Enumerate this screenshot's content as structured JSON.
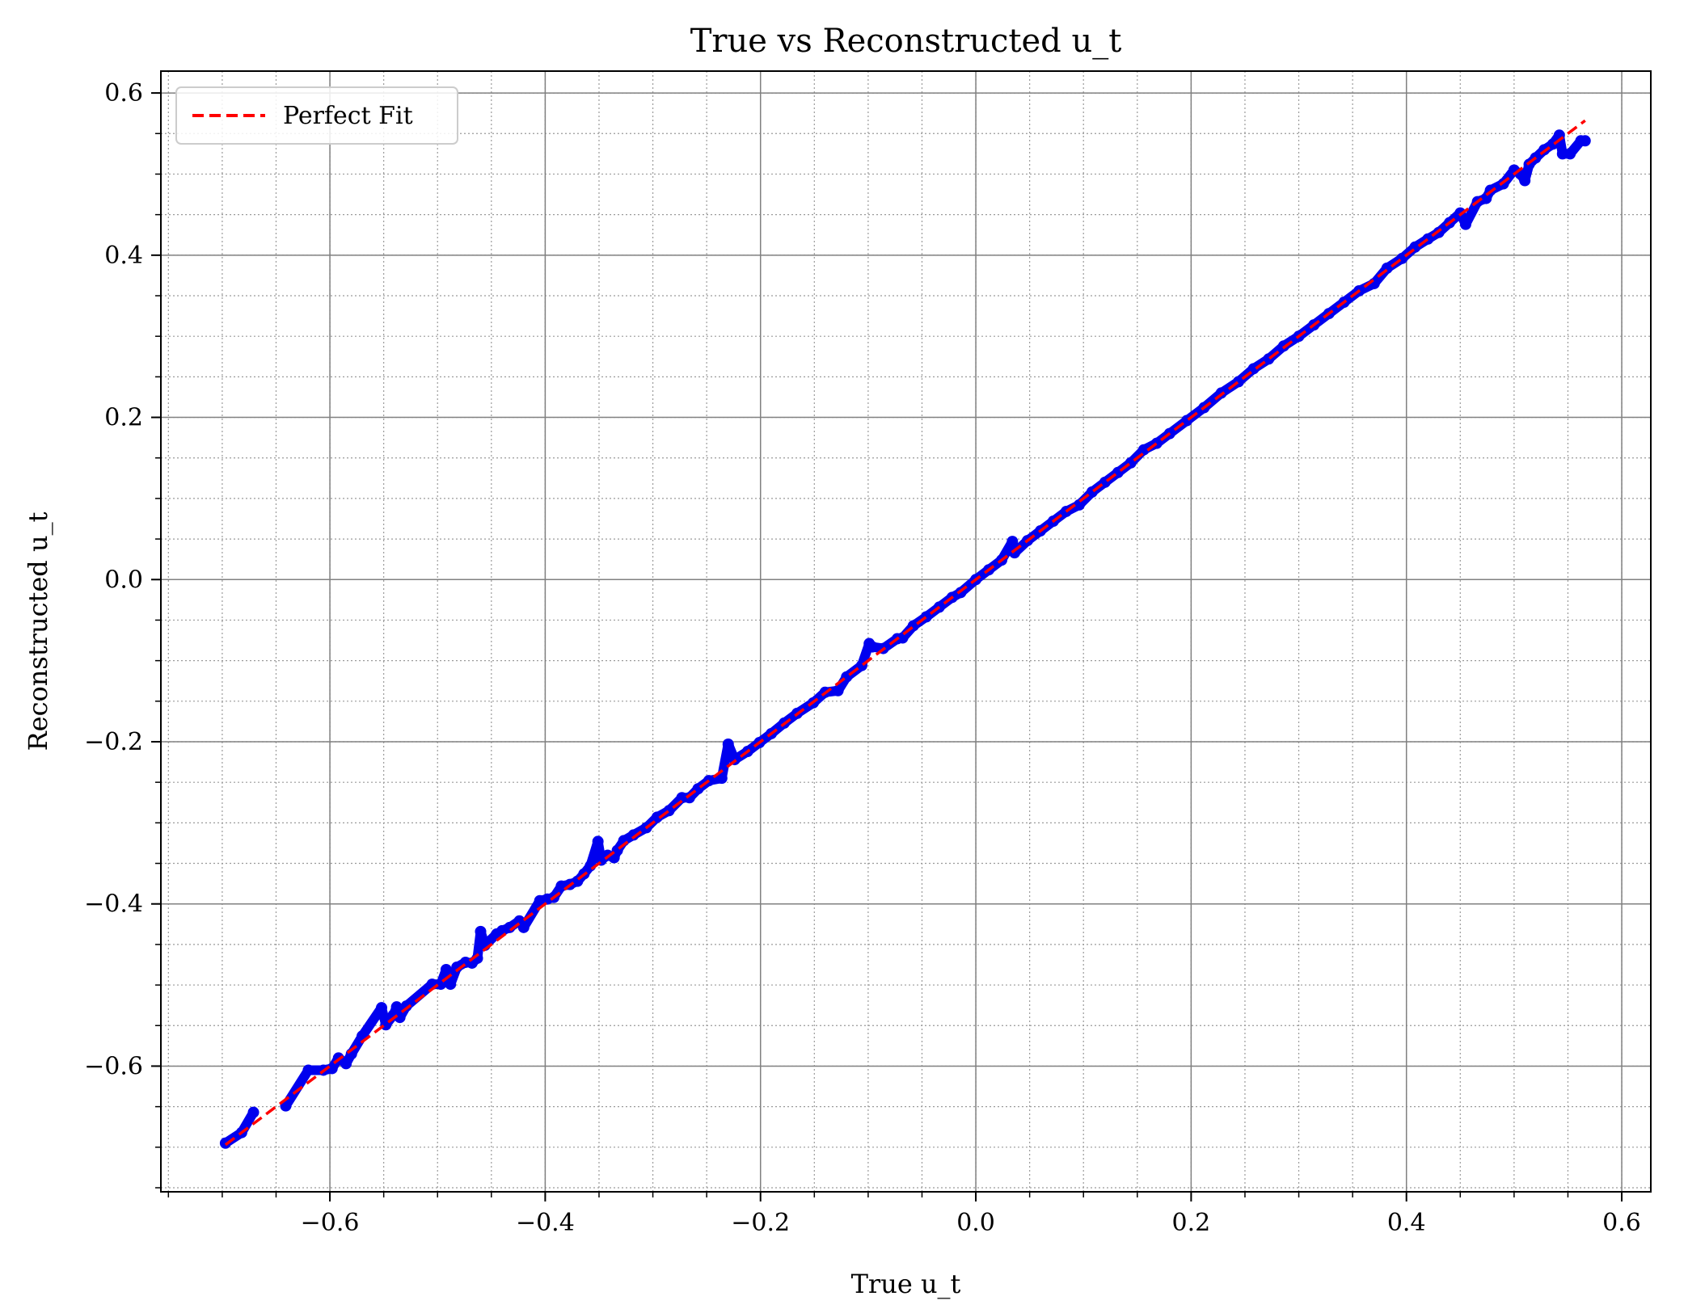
{
  "chart_data": {
    "type": "scatter",
    "title": "True vs Reconstructed u_t",
    "xlabel": "True u_t",
    "ylabel": "Reconstructed u_t",
    "xlim": [
      -0.757,
      0.627
    ],
    "ylim": [
      -0.755,
      0.627
    ],
    "xticks": [
      -0.6,
      -0.4,
      -0.2,
      0.0,
      0.2,
      0.4,
      0.6
    ],
    "xtick_labels": [
      "−0.6",
      "−0.4",
      "−0.2",
      "0.0",
      "0.2",
      "0.4",
      "0.6"
    ],
    "yticks": [
      -0.6,
      -0.4,
      -0.2,
      0.0,
      0.2,
      0.4,
      0.6
    ],
    "ytick_labels": [
      "−0.6",
      "−0.4",
      "−0.2",
      "0.0",
      "0.2",
      "0.4",
      "0.6"
    ],
    "grid": true,
    "minor_grid": true,
    "legend_position": "top-left",
    "legend": [
      {
        "label": "Perfect Fit",
        "style": "dashed",
        "color": "#ff0000"
      }
    ],
    "colors": {
      "points": "#0000ee",
      "fit": "#ff0000",
      "grid_major": "#808080",
      "grid_minor": "#9a9a9a"
    },
    "series": [
      {
        "kind": "points",
        "values": [
          [
            -0.697,
            -0.695
          ],
          [
            -0.682,
            -0.682
          ],
          [
            -0.671,
            -0.657
          ],
          [
            -0.641,
            -0.649
          ],
          [
            -0.62,
            -0.605
          ],
          [
            -0.606,
            -0.605
          ],
          [
            -0.598,
            -0.603
          ],
          [
            -0.592,
            -0.59
          ],
          [
            -0.585,
            -0.597
          ],
          [
            -0.58,
            -0.585
          ],
          [
            -0.57,
            -0.563
          ],
          [
            -0.552,
            -0.528
          ],
          [
            -0.548,
            -0.549
          ],
          [
            -0.541,
            -0.537
          ],
          [
            -0.538,
            -0.527
          ],
          [
            -0.535,
            -0.54
          ],
          [
            -0.529,
            -0.526
          ],
          [
            -0.505,
            -0.499
          ],
          [
            -0.497,
            -0.499
          ],
          [
            -0.492,
            -0.481
          ],
          [
            -0.488,
            -0.499
          ],
          [
            -0.482,
            -0.478
          ],
          [
            -0.474,
            -0.472
          ],
          [
            -0.468,
            -0.473
          ],
          [
            -0.463,
            -0.467
          ],
          [
            -0.46,
            -0.434
          ],
          [
            -0.456,
            -0.451
          ],
          [
            -0.445,
            -0.437
          ],
          [
            -0.44,
            -0.433
          ],
          [
            -0.433,
            -0.429
          ],
          [
            -0.424,
            -0.421
          ],
          [
            -0.42,
            -0.429
          ],
          [
            -0.405,
            -0.396
          ],
          [
            -0.398,
            -0.394
          ],
          [
            -0.392,
            -0.392
          ],
          [
            -0.385,
            -0.378
          ],
          [
            -0.377,
            -0.376
          ],
          [
            -0.37,
            -0.372
          ],
          [
            -0.364,
            -0.363
          ],
          [
            -0.358,
            -0.353
          ],
          [
            -0.351,
            -0.323
          ],
          [
            -0.348,
            -0.346
          ],
          [
            -0.342,
            -0.34
          ],
          [
            -0.336,
            -0.343
          ],
          [
            -0.333,
            -0.334
          ],
          [
            -0.327,
            -0.322
          ],
          [
            -0.318,
            -0.315
          ],
          [
            -0.306,
            -0.306
          ],
          [
            -0.296,
            -0.293
          ],
          [
            -0.285,
            -0.285
          ],
          [
            -0.273,
            -0.269
          ],
          [
            -0.266,
            -0.269
          ],
          [
            -0.258,
            -0.258
          ],
          [
            -0.248,
            -0.248
          ],
          [
            -0.236,
            -0.245
          ],
          [
            -0.23,
            -0.203
          ],
          [
            -0.224,
            -0.222
          ],
          [
            -0.212,
            -0.212
          ],
          [
            -0.201,
            -0.201
          ],
          [
            -0.19,
            -0.19
          ],
          [
            -0.178,
            -0.177
          ],
          [
            -0.166,
            -0.165
          ],
          [
            -0.151,
            -0.152
          ],
          [
            -0.14,
            -0.139
          ],
          [
            -0.128,
            -0.137
          ],
          [
            -0.12,
            -0.12
          ],
          [
            -0.106,
            -0.106
          ],
          [
            -0.099,
            -0.079
          ],
          [
            -0.096,
            -0.083
          ],
          [
            -0.086,
            -0.085
          ],
          [
            -0.073,
            -0.073
          ],
          [
            -0.068,
            -0.072
          ],
          [
            -0.058,
            -0.057
          ],
          [
            -0.046,
            -0.046
          ],
          [
            -0.034,
            -0.034
          ],
          [
            -0.022,
            -0.022
          ],
          [
            -0.014,
            -0.016
          ],
          [
            0.0,
            0.0
          ],
          [
            0.012,
            0.012
          ],
          [
            0.024,
            0.024
          ],
          [
            0.034,
            0.047
          ],
          [
            0.036,
            0.033
          ],
          [
            0.048,
            0.048
          ],
          [
            0.06,
            0.06
          ],
          [
            0.072,
            0.072
          ],
          [
            0.084,
            0.084
          ],
          [
            0.096,
            0.092
          ],
          [
            0.108,
            0.108
          ],
          [
            0.12,
            0.12
          ],
          [
            0.132,
            0.132
          ],
          [
            0.144,
            0.144
          ],
          [
            0.156,
            0.16
          ],
          [
            0.168,
            0.168
          ],
          [
            0.18,
            0.18
          ],
          [
            0.196,
            0.196
          ],
          [
            0.212,
            0.212
          ],
          [
            0.228,
            0.23
          ],
          [
            0.244,
            0.244
          ],
          [
            0.258,
            0.26
          ],
          [
            0.272,
            0.272
          ],
          [
            0.286,
            0.288
          ],
          [
            0.3,
            0.3
          ],
          [
            0.314,
            0.314
          ],
          [
            0.328,
            0.328
          ],
          [
            0.342,
            0.342
          ],
          [
            0.356,
            0.356
          ],
          [
            0.37,
            0.365
          ],
          [
            0.382,
            0.384
          ],
          [
            0.396,
            0.396
          ],
          [
            0.408,
            0.41
          ],
          [
            0.42,
            0.42
          ],
          [
            0.43,
            0.428
          ],
          [
            0.44,
            0.44
          ],
          [
            0.45,
            0.452
          ],
          [
            0.455,
            0.438
          ],
          [
            0.466,
            0.466
          ],
          [
            0.474,
            0.47
          ],
          [
            0.478,
            0.48
          ],
          [
            0.49,
            0.488
          ],
          [
            0.5,
            0.505
          ],
          [
            0.506,
            0.5
          ],
          [
            0.51,
            0.492
          ],
          [
            0.514,
            0.512
          ],
          [
            0.52,
            0.52
          ],
          [
            0.528,
            0.53
          ],
          [
            0.536,
            0.537
          ],
          [
            0.542,
            0.548
          ],
          [
            0.545,
            0.525
          ],
          [
            0.552,
            0.525
          ],
          [
            0.562,
            0.541
          ],
          [
            0.566,
            0.541
          ]
        ]
      },
      {
        "kind": "line",
        "name": "Perfect Fit",
        "x": [
          -0.697,
          0.566
        ],
        "y": [
          -0.697,
          0.566
        ]
      }
    ]
  }
}
